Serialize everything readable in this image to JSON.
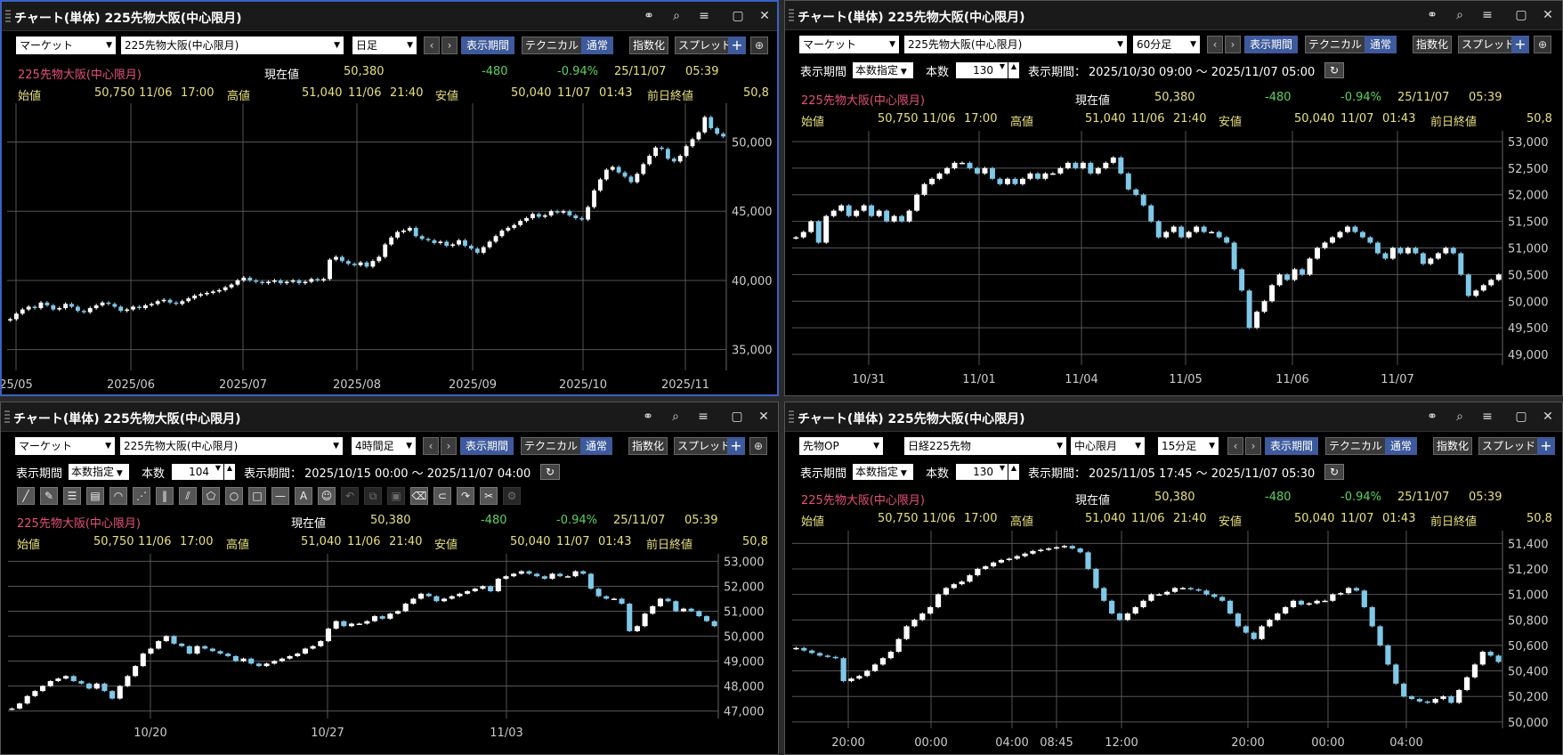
{
  "app": {
    "title": "チャート(単体) 225先物大阪(中心限月)"
  },
  "icons": {
    "link": "link-icon",
    "search": "search-icon",
    "menu": "menu-icon",
    "restore": "restore-icon",
    "close": "close-icon"
  },
  "quote": {
    "name": "225先物大阪(中心限月)",
    "current_label": "現在値",
    "current": "50,380",
    "change": "-480",
    "change_pct": "-0.94%",
    "date": "25/11/07",
    "time": "05:39",
    "open_label": "始値",
    "open": "50,750",
    "open_date": "11/06",
    "open_time": "17:00",
    "high_label": "高値",
    "high": "51,040",
    "high_date": "11/06",
    "high_time": "21:40",
    "low_label": "安値",
    "low": "50,040",
    "low_date": "11/07",
    "low_time": "01:43",
    "prev_label": "前日終値",
    "prev": "50,8"
  },
  "common": {
    "market": "マーケット",
    "symbol": "225先物大阪(中心限月)",
    "period_btn": "表示期間",
    "technical_btn": "テクニカル",
    "normal_btn": "通常",
    "index_btn": "指数化",
    "spread_btn": "スプレッド",
    "plus": "+",
    "period_label": "表示期間",
    "period_mode": "本数指定",
    "count_label": "本数",
    "range_label": "表示期間："
  },
  "panels": [
    {
      "interval": "日足"
    },
    {
      "interval": "60分足",
      "count": "130",
      "range": "2025/10/30 09:00 ～ 2025/11/07 05:00"
    },
    {
      "interval": "4時間足",
      "count": "104",
      "range": "2025/10/15 00:00 ～ 2025/11/07 04:00"
    },
    {
      "market": "先物OP",
      "symbol": "日経225先物",
      "month": "中心限月",
      "interval": "15分足",
      "count": "130",
      "range": "2025/11/05 17:45 ～ 2025/11/07 05:30"
    }
  ],
  "chart_data": [
    {
      "type": "candlestick",
      "title": "日足",
      "x_labels": [
        "25/05",
        "2025/06",
        "2025/07",
        "2025/08",
        "2025/09",
        "2025/10",
        "2025/11"
      ],
      "y_ticks": [
        "35,000",
        "40,000",
        "45,000",
        "50,000"
      ],
      "ylim": [
        33500,
        52800
      ],
      "close": [
        37200,
        37600,
        37900,
        38100,
        38000,
        38400,
        38200,
        37900,
        38000,
        38300,
        38100,
        37800,
        37700,
        38000,
        38200,
        38400,
        38300,
        38100,
        37800,
        37900,
        38100,
        38000,
        38200,
        38300,
        38500,
        38600,
        38400,
        38300,
        38500,
        38700,
        38900,
        39000,
        39100,
        39200,
        39300,
        39500,
        39700,
        40000,
        40200,
        40000,
        39900,
        39800,
        39900,
        40000,
        39800,
        39900,
        40000,
        39800,
        39900,
        40100,
        40000,
        40100,
        41500,
        41700,
        41400,
        41200,
        41100,
        41300,
        41000,
        41400,
        41700,
        42600,
        43100,
        43500,
        43600,
        43800,
        43200,
        43000,
        42900,
        42700,
        42800,
        42500,
        42600,
        42900,
        42500,
        42300,
        42000,
        42400,
        42800,
        43200,
        43600,
        43800,
        44000,
        44300,
        44500,
        44800,
        44600,
        44700,
        45000,
        44900,
        45000,
        44700,
        44500,
        44400,
        45300,
        46500,
        47300,
        48000,
        48200,
        47800,
        47500,
        47100,
        47700,
        48400,
        49000,
        49600,
        49500,
        48800,
        48600,
        49000,
        49700,
        50200,
        50700,
        51800,
        51000,
        50600,
        50400
      ]
    },
    {
      "type": "candlestick",
      "title": "60分足",
      "x_labels": [
        "10/31",
        "11/01",
        "11/04",
        "11/05",
        "11/06",
        "11/07"
      ],
      "y_ticks": [
        "49,000",
        "49,500",
        "50,000",
        "50,500",
        "51,000",
        "51,500",
        "52,000",
        "52,500",
        "53,000"
      ],
      "ylim": [
        48800,
        53200
      ],
      "close": [
        51200,
        51300,
        51500,
        51100,
        51600,
        51700,
        51800,
        51600,
        51700,
        51800,
        51600,
        51700,
        51500,
        51600,
        51500,
        51700,
        52000,
        52200,
        52300,
        52400,
        52500,
        52600,
        52600,
        52500,
        52400,
        52500,
        52300,
        52200,
        52300,
        52200,
        52300,
        52400,
        52300,
        52400,
        52400,
        52500,
        52600,
        52500,
        52600,
        52400,
        52500,
        52600,
        52700,
        52400,
        52100,
        52000,
        51800,
        51500,
        51200,
        51300,
        51400,
        51200,
        51300,
        51400,
        51300,
        51300,
        51200,
        51100,
        50600,
        50200,
        49500,
        49800,
        50000,
        50300,
        50500,
        50400,
        50600,
        50500,
        50800,
        51000,
        51100,
        51200,
        51300,
        51400,
        51300,
        51200,
        51100,
        50900,
        50800,
        51000,
        50900,
        51000,
        50900,
        50700,
        50800,
        50900,
        51000,
        50900,
        50500,
        50100,
        50200,
        50300,
        50400,
        50500
      ]
    },
    {
      "type": "candlestick",
      "title": "4時間足",
      "x_labels": [
        "10/20",
        "10/27",
        "11/03"
      ],
      "y_ticks": [
        "47,000",
        "48,000",
        "49,000",
        "50,000",
        "51,000",
        "52,000",
        "53,000"
      ],
      "ylim": [
        46700,
        53300
      ],
      "close": [
        47100,
        47300,
        47600,
        47800,
        48000,
        48200,
        48300,
        48400,
        48200,
        48100,
        47900,
        48100,
        47800,
        47500,
        48000,
        48400,
        48800,
        49300,
        49500,
        49800,
        50000,
        49700,
        49600,
        49300,
        49600,
        49500,
        49400,
        49300,
        49200,
        49000,
        49100,
        48900,
        48800,
        48900,
        49000,
        49100,
        49200,
        49300,
        49500,
        49600,
        49800,
        50300,
        50600,
        50400,
        50500,
        50500,
        50600,
        50800,
        50700,
        50900,
        51000,
        51300,
        51500,
        51700,
        51600,
        51400,
        51500,
        51600,
        51700,
        51800,
        51900,
        52000,
        51800,
        52300,
        52400,
        52500,
        52600,
        52500,
        52400,
        52300,
        52500,
        52400,
        52400,
        52600,
        52500,
        51900,
        51600,
        51500,
        51500,
        51300,
        50200,
        50400,
        50900,
        51200,
        51500,
        51400,
        51000,
        51100,
        51000,
        50800,
        50600,
        50400
      ]
    },
    {
      "type": "candlestick",
      "title": "15分足",
      "x_labels": [
        "20:00",
        "00:00",
        "04:00",
        "08:45",
        "12:00",
        "20:00",
        "00:00",
        "04:00"
      ],
      "y_ticks": [
        "50,000",
        "50,200",
        "50,400",
        "50,600",
        "50,800",
        "51,000",
        "51,200",
        "51,400"
      ],
      "ylim": [
        49950,
        51500
      ],
      "close": [
        50580,
        50560,
        50540,
        50520,
        50510,
        50500,
        50320,
        50340,
        50360,
        50400,
        50450,
        50500,
        50550,
        50650,
        50750,
        50800,
        50850,
        50900,
        51000,
        51050,
        51080,
        51100,
        51150,
        51200,
        51220,
        51250,
        51270,
        51280,
        51300,
        51320,
        51340,
        51350,
        51360,
        51370,
        51380,
        51360,
        51330,
        51200,
        51050,
        50950,
        50850,
        50800,
        50850,
        50900,
        50950,
        51000,
        51000,
        51020,
        51050,
        51050,
        51040,
        51030,
        51000,
        50980,
        50950,
        50850,
        50750,
        50700,
        50650,
        50750,
        50800,
        50850,
        50900,
        50950,
        50920,
        50930,
        50950,
        50950,
        51000,
        51010,
        51050,
        51030,
        50900,
        50750,
        50600,
        50450,
        50300,
        50200,
        50180,
        50160,
        50150,
        50180,
        50200,
        50150,
        50250,
        50350,
        50450,
        50550,
        50520,
        50470
      ]
    }
  ]
}
